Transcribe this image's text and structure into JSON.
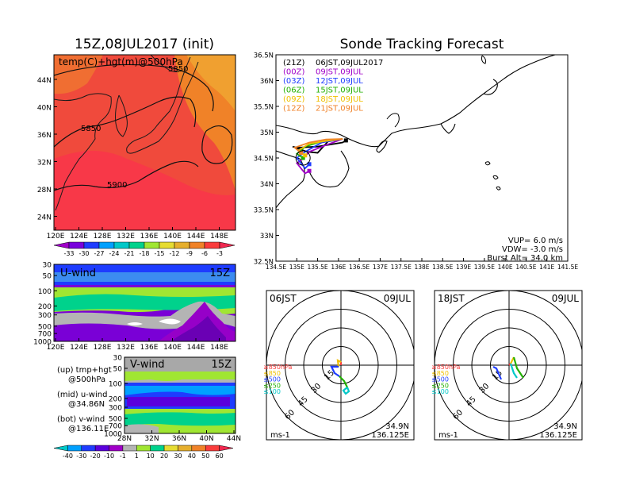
{
  "meta": {
    "left_title": "15Z,08JUL2017 (init)",
    "right_title": "Sonde Tracking Forecast"
  },
  "temp_map": {
    "label": "temp(C)+hgt(m)@500hPa",
    "contour_labels": [
      "5850",
      "5850",
      "5900"
    ],
    "lat_ticks": [
      "44N",
      "40N",
      "36N",
      "32N",
      "28N",
      "24N"
    ],
    "lon_ticks": [
      "120E",
      "124E",
      "128E",
      "132E",
      "136E",
      "140E",
      "144E",
      "148E"
    ],
    "colorbar": {
      "labels": [
        "-33",
        "-30",
        "-27",
        "-24",
        "-21",
        "-18",
        "-15",
        "-12",
        "-9",
        "-6",
        "-3"
      ],
      "colors": [
        "#a000c8",
        "#7800dc",
        "#1e3cff",
        "#00a0ff",
        "#00c8c8",
        "#00d28c",
        "#a0e632",
        "#e6dc32",
        "#e6af2d",
        "#f08228",
        "#fa3c3c",
        "#f02850"
      ]
    }
  },
  "u_wind": {
    "label": "U-wind",
    "time": "15Z",
    "p_ticks": [
      "30",
      "50",
      "100",
      "200",
      "300",
      "500",
      "700",
      "1000"
    ],
    "lon_ticks": [
      "120E",
      "124E",
      "128E",
      "132E",
      "136E",
      "140E",
      "144E",
      "148E"
    ]
  },
  "v_wind": {
    "label": "V-wind",
    "time": "15Z",
    "p_ticks": [
      "30",
      "50",
      "100",
      "200",
      "300",
      "500",
      "700",
      "1000"
    ],
    "lat_ticks": [
      "28N",
      "32N",
      "36N",
      "40N",
      "44N"
    ]
  },
  "side_notes": {
    "line1": "(up) tmp+hgt",
    "line2": "@500hPa",
    "line3": "(mid) u-wind",
    "line4": "@34.86N",
    "line5": "(bot) v-wind",
    "line6": "@136.11E"
  },
  "wind_colorbar": {
    "labels": [
      "-40",
      "-30",
      "-20",
      "-10",
      "-1",
      "1",
      "10",
      "20",
      "30",
      "40",
      "50",
      "60"
    ],
    "colors": [
      "#00c8c8",
      "#00a0ff",
      "#1e3cff",
      "#5a00dc",
      "#a000c8",
      "#b4b4b4",
      "#a0e632",
      "#00d28c",
      "#e6dc32",
      "#e6af2d",
      "#f08228",
      "#fa3c3c",
      "#f02850"
    ]
  },
  "track_map": {
    "lat_ticks": [
      "36.5N",
      "36N",
      "35.5N",
      "35N",
      "34.5N",
      "34N",
      "33.5N",
      "33N",
      "32.5N"
    ],
    "lon_ticks": [
      "134.5E",
      "135E",
      "135.5E",
      "136E",
      "136.5E",
      "137E",
      "137.5E",
      "138E",
      "138.5E",
      "139E",
      "139.5E",
      "140E",
      "140.5E",
      "141E",
      "141.5E"
    ],
    "legend": [
      {
        "code": "(21Z)",
        "label": "06JST,09JUL2017",
        "color": "#000000"
      },
      {
        "code": "(00Z)",
        "label": "09JST,09JUL",
        "color": "#a000c8"
      },
      {
        "code": "(03Z)",
        "label": "12JST,09JUL",
        "color": "#1e3cff"
      },
      {
        "code": "(06Z)",
        "label": "15JST,09JUL",
        "color": "#22b000"
      },
      {
        "code": "(09Z)",
        "label": "18JST,09JUL",
        "color": "#f0c000"
      },
      {
        "code": "(12Z)",
        "label": "21JST,09JUL",
        "color": "#f08228"
      }
    ],
    "info": {
      "vup": "VUP=  6.0 m/s",
      "vdw": "VDW= -3.0 m/s",
      "burst": "Burst Alt= 34.0 km"
    }
  },
  "polar_06": {
    "time": "06JST",
    "date": "09JUL",
    "rings": [
      "15",
      "30",
      "45",
      "60"
    ],
    "levels": [
      "≥850hPa",
      "≤850",
      "≤500",
      "≤250",
      "≤100"
    ],
    "level_colors": [
      "#fa3c3c",
      "#f0c000",
      "#1e3cff",
      "#22b000",
      "#00c8c8"
    ],
    "loc1": "34.9N",
    "loc2": "136.125E",
    "unit": "ms-1"
  },
  "polar_18": {
    "time": "18JST",
    "date": "09JUL",
    "rings": [
      "15",
      "30",
      "45",
      "60"
    ],
    "levels": [
      "≥850hPa",
      "≤850",
      "≤500",
      "≤250",
      "≤100"
    ],
    "level_colors": [
      "#fa3c3c",
      "#f0c000",
      "#1e3cff",
      "#22b000",
      "#00c8c8"
    ],
    "loc1": "34.9N",
    "loc2": "136.125E",
    "unit": "ms-1"
  },
  "chart_data": [
    {
      "type": "heatmap",
      "title": "15Z,08JUL2017 (init)",
      "field": "temp(C)+hgt(m)@500hPa",
      "x_ticks": [
        "120E",
        "124E",
        "128E",
        "132E",
        "136E",
        "140E",
        "144E",
        "148E"
      ],
      "y_ticks": [
        "24N",
        "28N",
        "32N",
        "36N",
        "40N",
        "44N"
      ],
      "color_levels": [
        -33,
        -30,
        -27,
        -24,
        -21,
        -18,
        -15,
        -12,
        -9,
        -6,
        -3
      ],
      "contour_labels": [
        5850,
        5850,
        5900
      ]
    },
    {
      "type": "heatmap",
      "title": "U-wind",
      "time": "15Z",
      "y_ticks": [
        30,
        50,
        100,
        200,
        300,
        500,
        700,
        1000
      ],
      "x_ticks": [
        "120E",
        "124E",
        "128E",
        "132E",
        "136E",
        "140E",
        "144E",
        "148E"
      ]
    },
    {
      "type": "heatmap",
      "title": "V-wind",
      "time": "15Z",
      "y_ticks": [
        30,
        50,
        100,
        200,
        300,
        500,
        700,
        1000
      ],
      "x_ticks": [
        "28N",
        "32N",
        "36N",
        "40N",
        "44N"
      ],
      "color_levels": [
        -40,
        -30,
        -20,
        -10,
        -1,
        1,
        10,
        20,
        30,
        40,
        50,
        60
      ]
    },
    {
      "type": "line",
      "title": "Sonde Tracking Forecast",
      "x_range": [
        134.5,
        141.5
      ],
      "y_range": [
        32.5,
        36.5
      ],
      "series": [
        {
          "name": "(21Z) 06JST,09JUL2017",
          "color": "#000000",
          "x": [
            136.1,
            135.75,
            135.5,
            135.25,
            134.9,
            135.0,
            135.5,
            136.1,
            136.18
          ],
          "y": [
            34.87,
            34.82,
            34.6,
            34.62,
            34.72,
            34.7,
            34.72,
            34.8,
            34.84
          ]
        },
        {
          "name": "(00Z) 09JST,09JUL",
          "color": "#a000c8",
          "x": [
            136.1,
            135.7,
            135.3,
            135.1,
            135.0,
            135.2,
            135.3
          ],
          "y": [
            34.87,
            34.75,
            34.62,
            34.45,
            34.4,
            34.2,
            34.25
          ]
        },
        {
          "name": "(03Z) 12JST,09JUL",
          "color": "#1e3cff",
          "x": [
            136.1,
            135.6,
            135.2,
            135.0,
            135.2,
            135.3
          ],
          "y": [
            34.87,
            34.8,
            34.62,
            34.5,
            34.3,
            34.38
          ]
        },
        {
          "name": "(06Z) 15JST,09JUL",
          "color": "#22b000",
          "x": [
            136.1,
            135.6,
            135.2,
            135.0,
            135.15
          ],
          "y": [
            34.87,
            34.82,
            34.72,
            34.58,
            34.5
          ]
        },
        {
          "name": "(09Z) 18JST,09JUL",
          "color": "#f0c000",
          "x": [
            136.1,
            135.7,
            135.3,
            135.05,
            135.2
          ],
          "y": [
            34.87,
            34.83,
            34.78,
            34.65,
            34.55
          ]
        },
        {
          "name": "(12Z) 21JST,09JUL",
          "color": "#f08228",
          "x": [
            136.1,
            135.7,
            135.3,
            134.95,
            135.1
          ],
          "y": [
            34.87,
            34.86,
            34.8,
            34.7,
            34.6
          ]
        }
      ]
    },
    {
      "type": "scatter",
      "title": "06JST 09JUL",
      "rings": [
        15,
        30,
        45,
        60
      ],
      "location": "34.9N 136.125E",
      "unit": "ms-1"
    },
    {
      "type": "scatter",
      "title": "18JST 09JUL",
      "rings": [
        15,
        30,
        45,
        60
      ],
      "location": "34.9N 136.125E",
      "unit": "ms-1"
    }
  ]
}
